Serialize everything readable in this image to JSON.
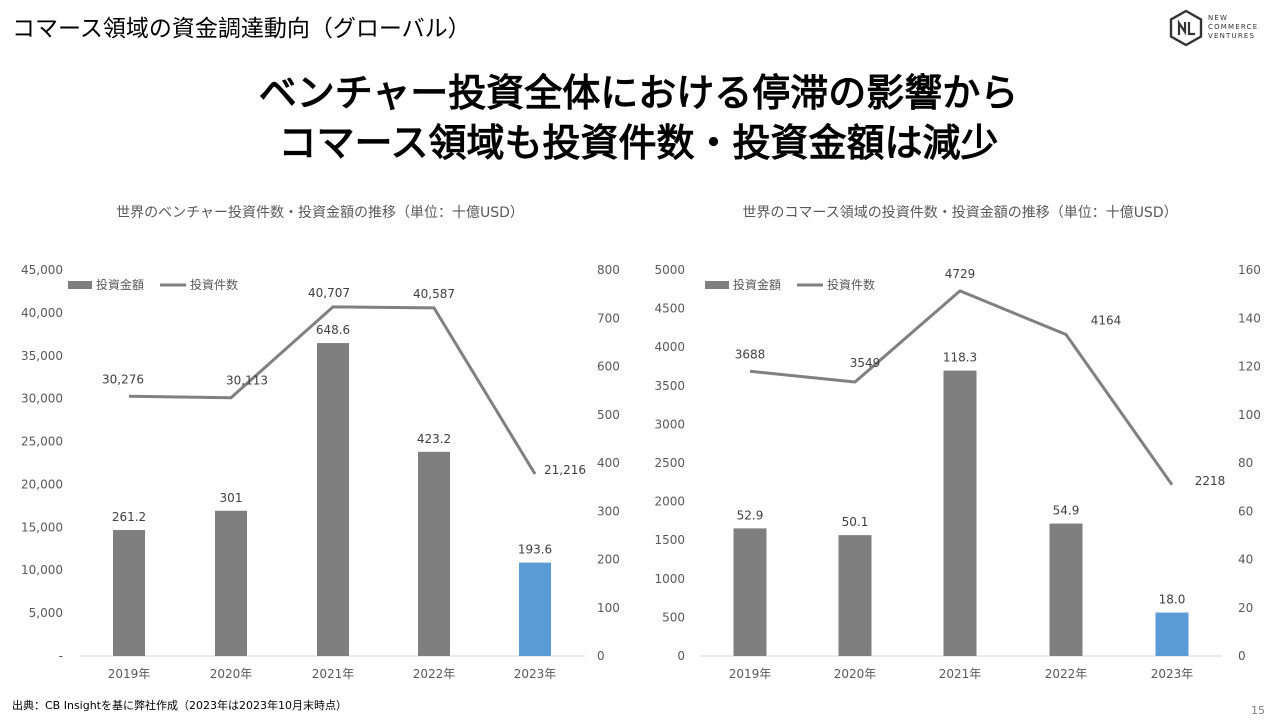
{
  "header": {
    "section_title": "コマース領域の資金調達動向（グローバル）",
    "logo_text": [
      "NEW",
      "COMMERCE",
      "VENTURES"
    ]
  },
  "headline": {
    "line1": "ベンチャー投資全体における停滞の影響から",
    "line2": "コマース領域も投資件数・投資金額は減少"
  },
  "colors": {
    "bar_gray": "#7f7f7f",
    "bar_highlight": "#5b9bd5",
    "line_gray": "#808080"
  },
  "footer": {
    "source": "出典：CB Insightを基に弊社作成（2023年は2023年10月末時点）",
    "page_number": "15"
  },
  "chart_data": [
    {
      "type": "bar",
      "title": "世界のベンチャー投資件数・投資金額の推移（単位：十億USD）",
      "categories": [
        "2019年",
        "2020年",
        "2021年",
        "2022年",
        "2023年"
      ],
      "series": [
        {
          "name": "投資金額",
          "type": "bar",
          "axis": "right",
          "values": [
            261.2,
            301,
            648.6,
            423.2,
            193.6
          ],
          "labels": [
            "261.2",
            "301",
            "648.6",
            "423.2",
            "193.6"
          ]
        },
        {
          "name": "投資件数",
          "type": "line",
          "axis": "left",
          "values": [
            30276,
            30113,
            40707,
            40587,
            21216
          ],
          "labels": [
            "30,276",
            "30,113",
            "40,707",
            "40,587",
            "21,216"
          ]
        }
      ],
      "highlight_index": 4,
      "left_axis": {
        "min": 0,
        "max": 45000,
        "ticks": [
          "-",
          "5,000",
          "10,000",
          "15,000",
          "20,000",
          "25,000",
          "30,000",
          "35,000",
          "40,000",
          "45,000"
        ]
      },
      "right_axis": {
        "min": 0,
        "max": 800,
        "ticks": [
          "0",
          "100",
          "200",
          "300",
          "400",
          "500",
          "600",
          "700",
          "800"
        ]
      },
      "legend_position": "top-left",
      "grid": false
    },
    {
      "type": "bar",
      "title": "世界のコマース領域の投資件数・投資金額の推移（単位：十億USD）",
      "categories": [
        "2019年",
        "2020年",
        "2021年",
        "2022年",
        "2023年"
      ],
      "series": [
        {
          "name": "投資金額",
          "type": "bar",
          "axis": "right",
          "values": [
            52.9,
            50.1,
            118.3,
            54.9,
            18.0
          ],
          "labels": [
            "52.9",
            "50.1",
            "118.3",
            "54.9",
            "18.0"
          ]
        },
        {
          "name": "投資件数",
          "type": "line",
          "axis": "left",
          "values": [
            3688,
            3549,
            4729,
            4164,
            2218
          ],
          "labels": [
            "3688",
            "3549",
            "4729",
            "4164",
            "2218"
          ]
        }
      ],
      "highlight_index": 4,
      "left_axis": {
        "min": 0,
        "max": 5000,
        "ticks": [
          "0",
          "500",
          "1000",
          "1500",
          "2000",
          "2500",
          "3000",
          "3500",
          "4000",
          "4500",
          "5000"
        ]
      },
      "right_axis": {
        "min": 0,
        "max": 160,
        "ticks": [
          "0",
          "20",
          "40",
          "60",
          "80",
          "100",
          "120",
          "140",
          "160"
        ]
      },
      "legend_position": "top-left",
      "grid": false
    }
  ]
}
